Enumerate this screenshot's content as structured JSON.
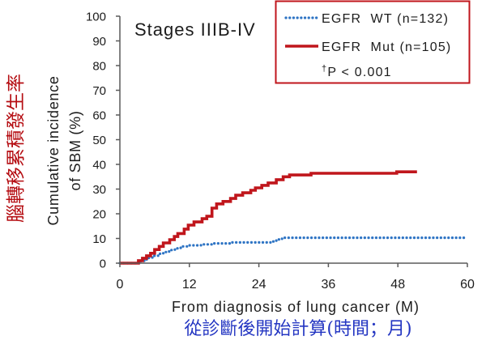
{
  "captions": {
    "vertical_zh": "腦轉移累積發生率",
    "xaxis_zh": "從診斷後開始計算(時間；月)"
  },
  "colors": {
    "legend_border": "#c0161c",
    "vertical_zh": "#b50d12",
    "xaxis_zh": "#2436c2"
  },
  "chart_data": {
    "type": "line",
    "line_shape": "step",
    "title": "Stages IIIB-IV",
    "xlabel": "From diagnosis of lung cancer (M)",
    "ylabel": [
      "Cumulative incidence",
      "of SBM (%)"
    ],
    "xlim": [
      0,
      60
    ],
    "ylim": [
      0,
      100
    ],
    "xticks": [
      0,
      12,
      24,
      36,
      48,
      60
    ],
    "yticks": [
      0,
      10,
      20,
      30,
      40,
      50,
      60,
      70,
      80,
      90,
      100
    ],
    "grid": false,
    "legend_position": "top-right",
    "annotation": {
      "marker": "†",
      "text": "P < 0.001"
    },
    "series": [
      {
        "name": "EGFR  WT (n=132)",
        "color": "#2e74c4",
        "line_style": "dotted",
        "x": [
          0,
          3.5,
          4.2,
          5.0,
          5.8,
          6.6,
          7.5,
          8.5,
          9.5,
          10.5,
          12.0,
          14.0,
          16.0,
          19.0,
          26.0,
          27.0,
          28.0,
          60.0
        ],
        "y": [
          0,
          0.8,
          1.5,
          2.3,
          3.0,
          3.8,
          4.5,
          5.3,
          6.0,
          6.8,
          7.2,
          7.6,
          8.0,
          8.4,
          8.8,
          9.6,
          10.3,
          10.3
        ]
      },
      {
        "name": "EGFR  Mut (n=105)",
        "color": "#c0161c",
        "line_style": "solid",
        "x": [
          0,
          3.2,
          3.9,
          4.6,
          5.3,
          6.0,
          6.8,
          7.5,
          8.6,
          9.4,
          10.0,
          11.1,
          11.8,
          12.8,
          14.2,
          15.0,
          15.9,
          16.7,
          17.8,
          19.1,
          20.0,
          21.2,
          22.6,
          23.4,
          24.5,
          25.6,
          27.0,
          28.2,
          29.3,
          33.0,
          47.8,
          51.3
        ],
        "y": [
          0,
          1.0,
          2.0,
          3.0,
          4.0,
          5.5,
          6.8,
          8.2,
          9.5,
          10.8,
          12.0,
          13.8,
          15.4,
          16.7,
          18.0,
          19.0,
          22.3,
          24.0,
          25.0,
          26.2,
          27.5,
          28.5,
          29.5,
          30.5,
          31.5,
          32.5,
          33.8,
          35.0,
          35.7,
          36.4,
          37.0,
          37.0
        ]
      }
    ]
  }
}
